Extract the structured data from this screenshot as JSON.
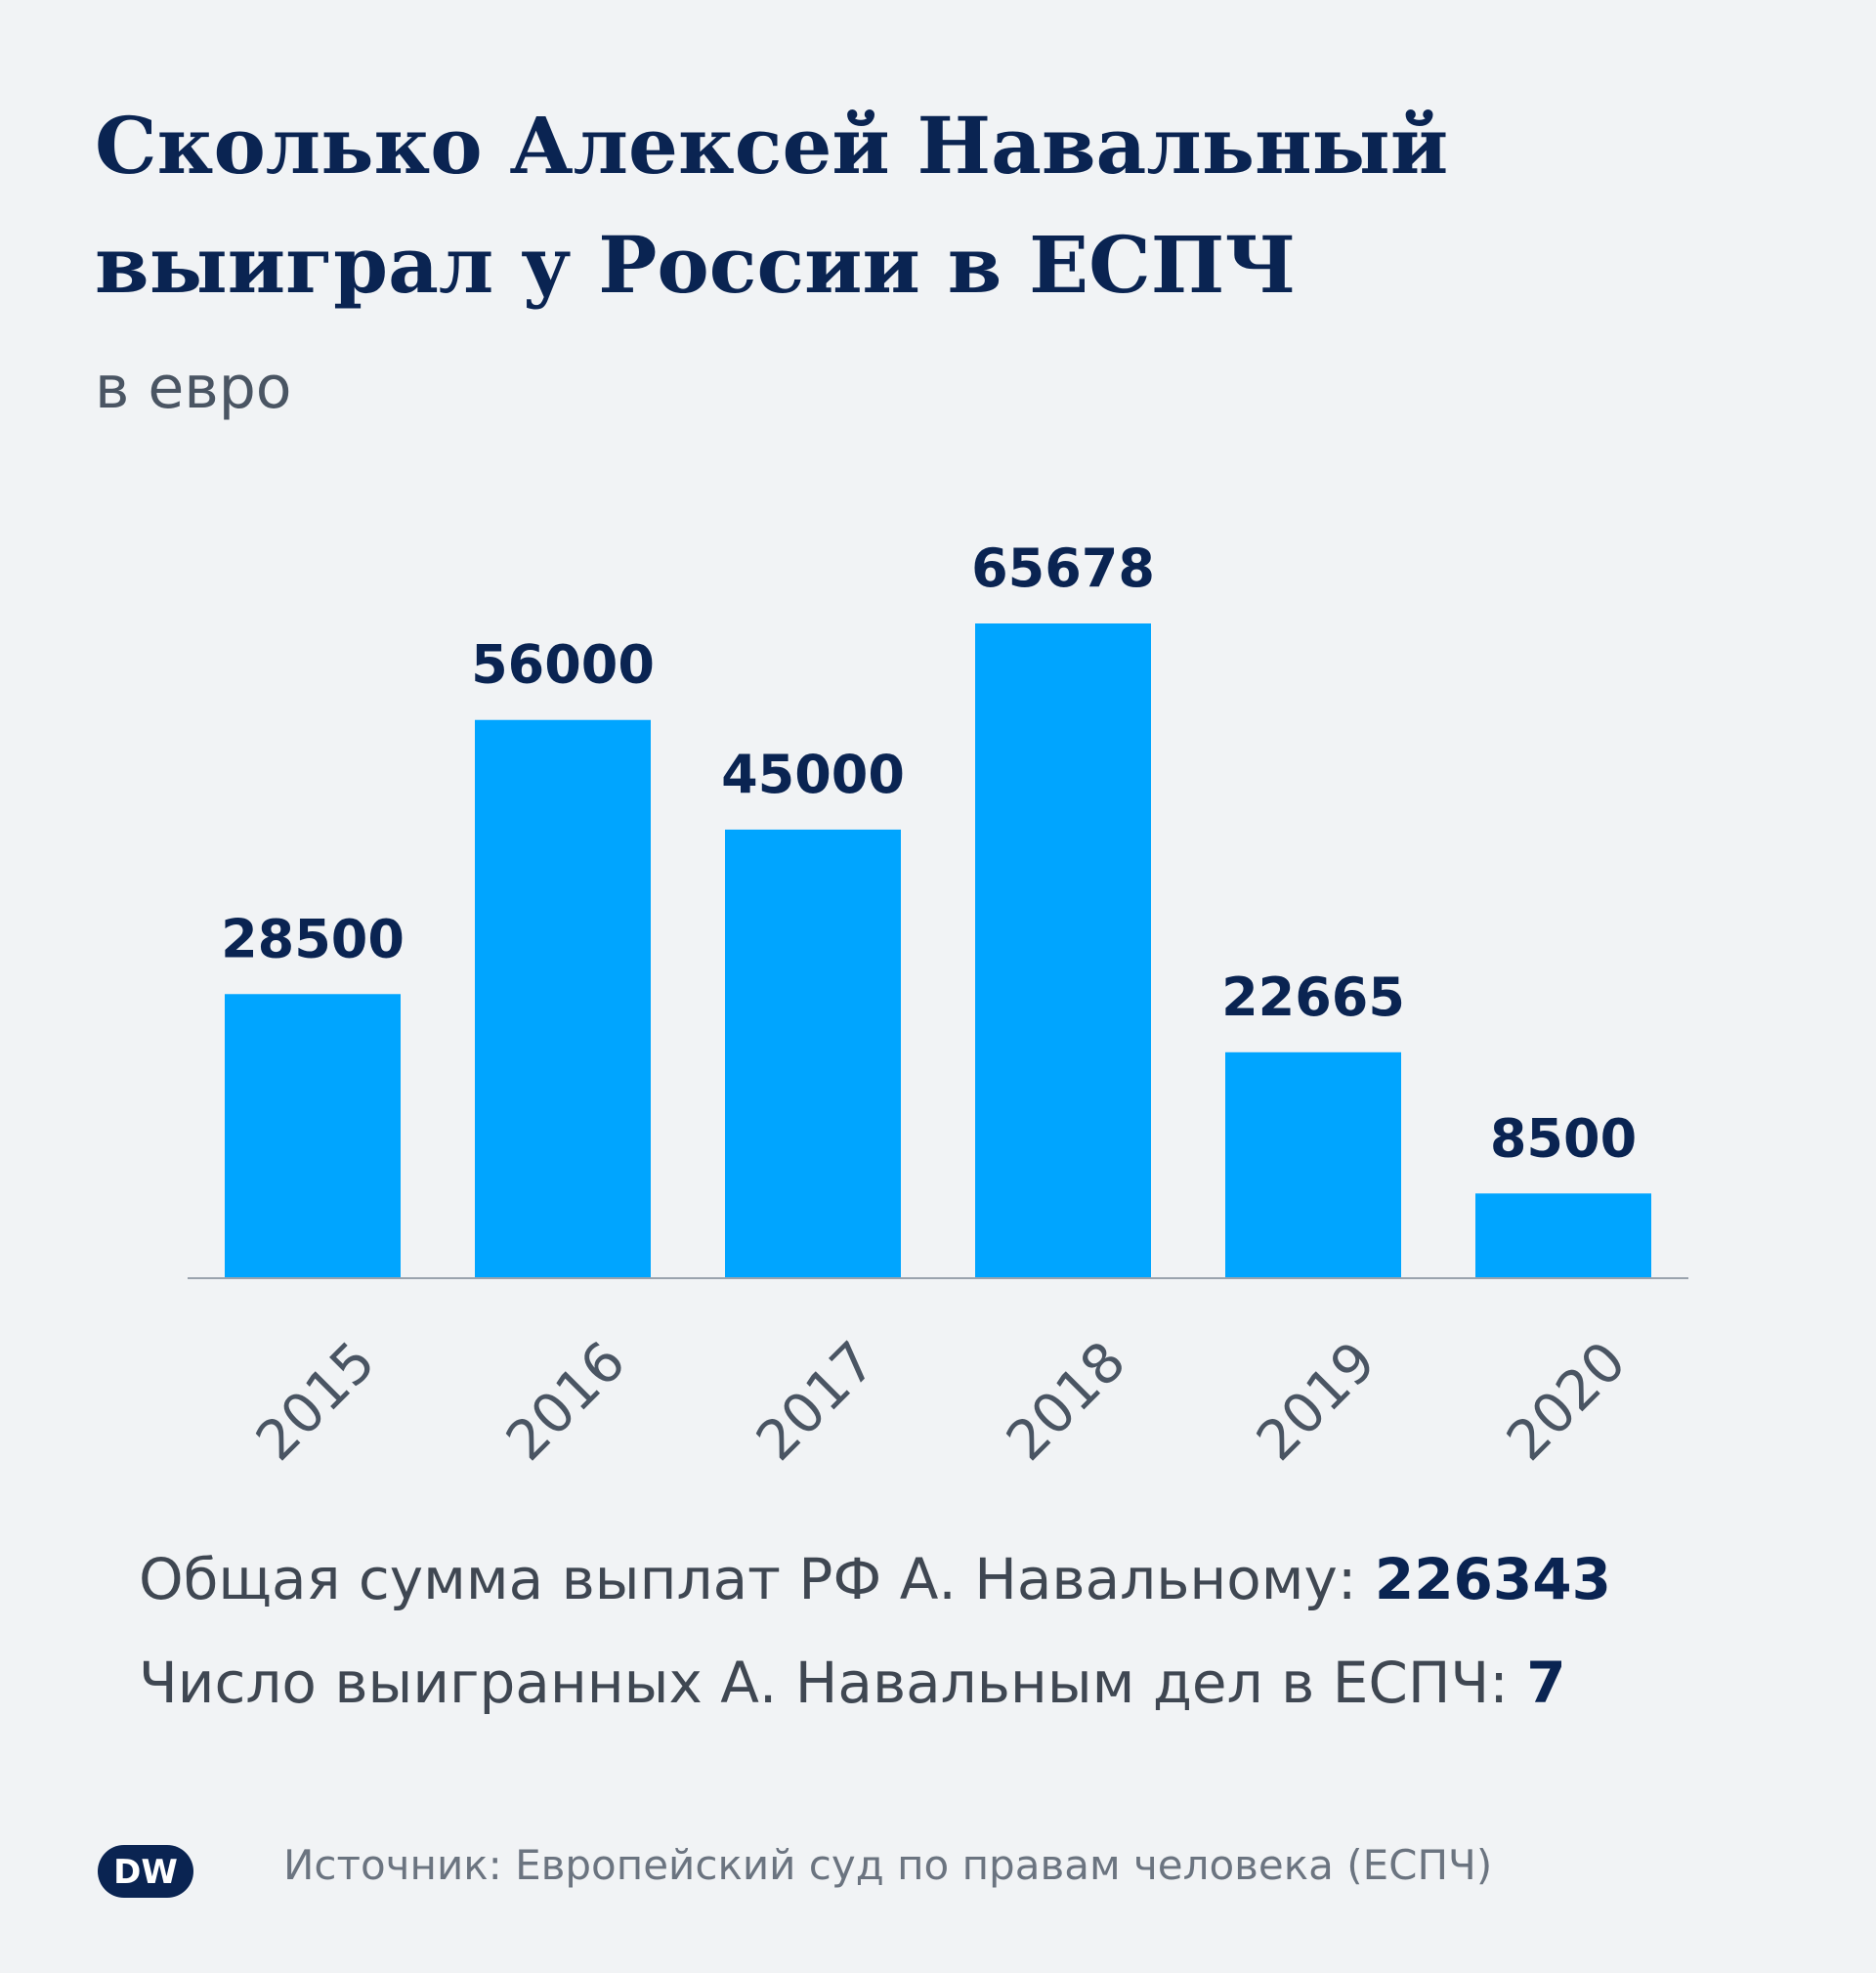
{
  "title": "Сколько Алексей Навальный выиграл у России в ЕСПЧ",
  "subtitle": "в евро",
  "chart_data": {
    "type": "bar",
    "categories": [
      "2015",
      "2016",
      "2017",
      "2018",
      "2019",
      "2020"
    ],
    "values": [
      28500,
      56000,
      45000,
      65678,
      22665,
      8500
    ],
    "value_labels": [
      "28500",
      "56000",
      "45000",
      "65678",
      "22665",
      "8500"
    ],
    "title": "Сколько Алексей Навальный выиграл у России в ЕСПЧ",
    "subtitle": "в евро",
    "xlabel": "",
    "ylabel": "",
    "ylim": [
      0,
      65678
    ],
    "grid": false,
    "legend": "none",
    "bar_color": "#00a5ff"
  },
  "summary": {
    "total_label": "Общая сумма выплат РФ А. Навальному: ",
    "total_value": "226343",
    "cases_label": "Число выигранных А. Навальным дел в ЕСПЧ: ",
    "cases_value": "7"
  },
  "footer": {
    "logo_text": "DW",
    "source": "Источник: Европейский суд по правам человека (ЕСПЧ)"
  },
  "colors": {
    "background": "#f1f3f5",
    "title": "#0a2452",
    "bar": "#00a5ff",
    "text": "#3f4752",
    "muted": "#6b7480"
  }
}
